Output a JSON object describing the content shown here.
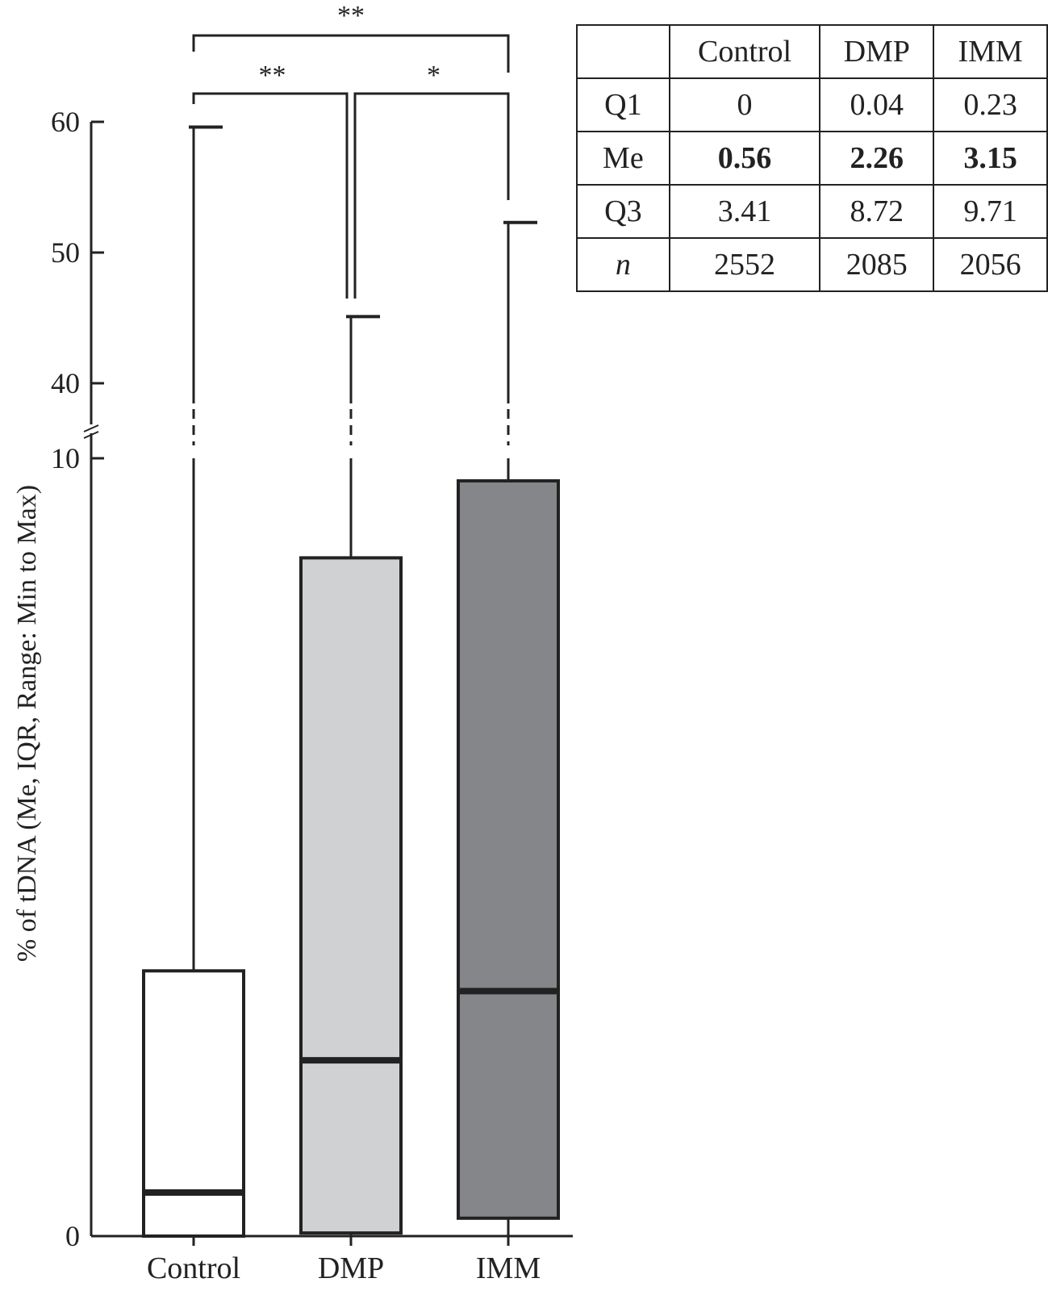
{
  "chart_data": {
    "type": "box",
    "ylabel": "% of tDNA (Me, IQR, Range: Min to Max)",
    "xlabel": "",
    "title": "",
    "y_ticks": [
      0,
      10,
      40,
      50,
      60
    ],
    "y_break": [
      10,
      40
    ],
    "ylim": [
      0,
      60
    ],
    "categories": [
      "Control",
      "DMP",
      "IMM"
    ],
    "boxes": [
      {
        "name": "Control",
        "min": 0,
        "q1": 0,
        "median": 0.56,
        "q3": 3.41,
        "max": 59.6,
        "fill": "#ffffff"
      },
      {
        "name": "DMP",
        "min": 0,
        "q1": 0.04,
        "median": 2.26,
        "q3": 8.72,
        "max": 45.1,
        "fill": "#d0d1d3"
      },
      {
        "name": "IMM",
        "min": 0,
        "q1": 0.23,
        "median": 3.15,
        "q3": 9.71,
        "max": 52.3,
        "fill": "#858689"
      }
    ],
    "significance": [
      {
        "from": "Control",
        "to": "IMM",
        "label": "**"
      },
      {
        "from": "Control",
        "to": "DMP",
        "label": "**"
      },
      {
        "from": "DMP",
        "to": "IMM",
        "label": "*"
      }
    ]
  },
  "table": {
    "header": [
      "",
      "Control",
      "DMP",
      "IMM"
    ],
    "rows": [
      {
        "label": "Q1",
        "values": [
          "0",
          "0.04",
          "0.23"
        ]
      },
      {
        "label": "Me",
        "values": [
          "0.56",
          "2.26",
          "3.15"
        ]
      },
      {
        "label": "Q3",
        "values": [
          "3.41",
          "8.72",
          "9.71"
        ]
      },
      {
        "label": "n",
        "values": [
          "2552",
          "2085",
          "2056"
        ]
      }
    ]
  }
}
